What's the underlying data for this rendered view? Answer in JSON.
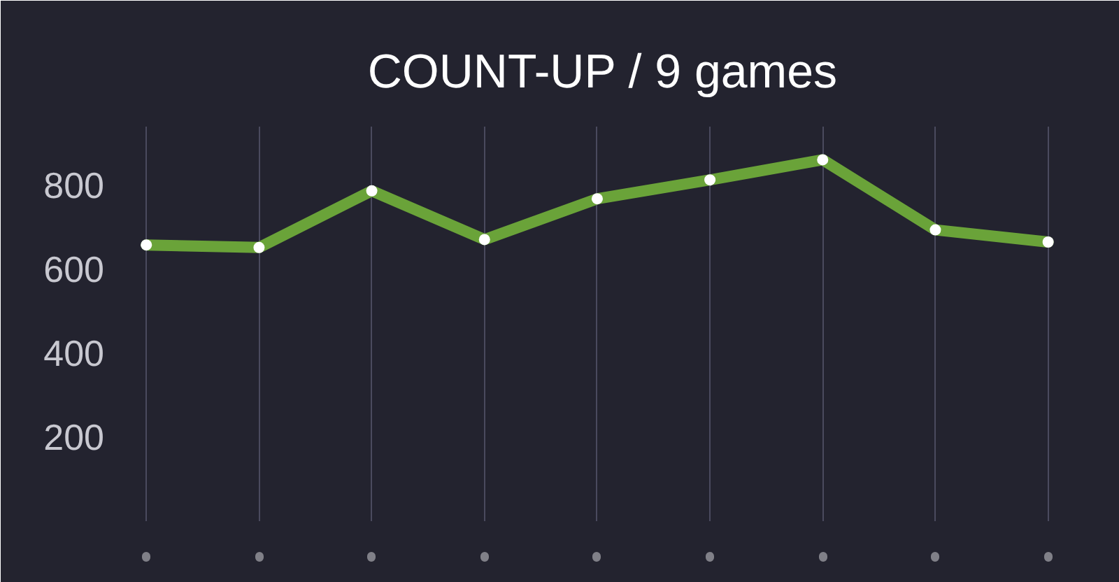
{
  "chart_data": {
    "type": "line",
    "title": "COUNT-UP / 9 games",
    "categories": [
      null,
      null,
      null,
      null,
      null,
      null,
      null,
      null,
      null
    ],
    "series": [
      {
        "color": "#6aa339",
        "values": [
          658,
          652,
          787,
          671,
          768,
          813,
          861,
          694,
          665
        ]
      }
    ],
    "ylim": [
      0,
      940
    ],
    "yticks": [
      200,
      400,
      600,
      800
    ],
    "grid": "x",
    "marker": "circle",
    "line_style": "solid"
  }
}
